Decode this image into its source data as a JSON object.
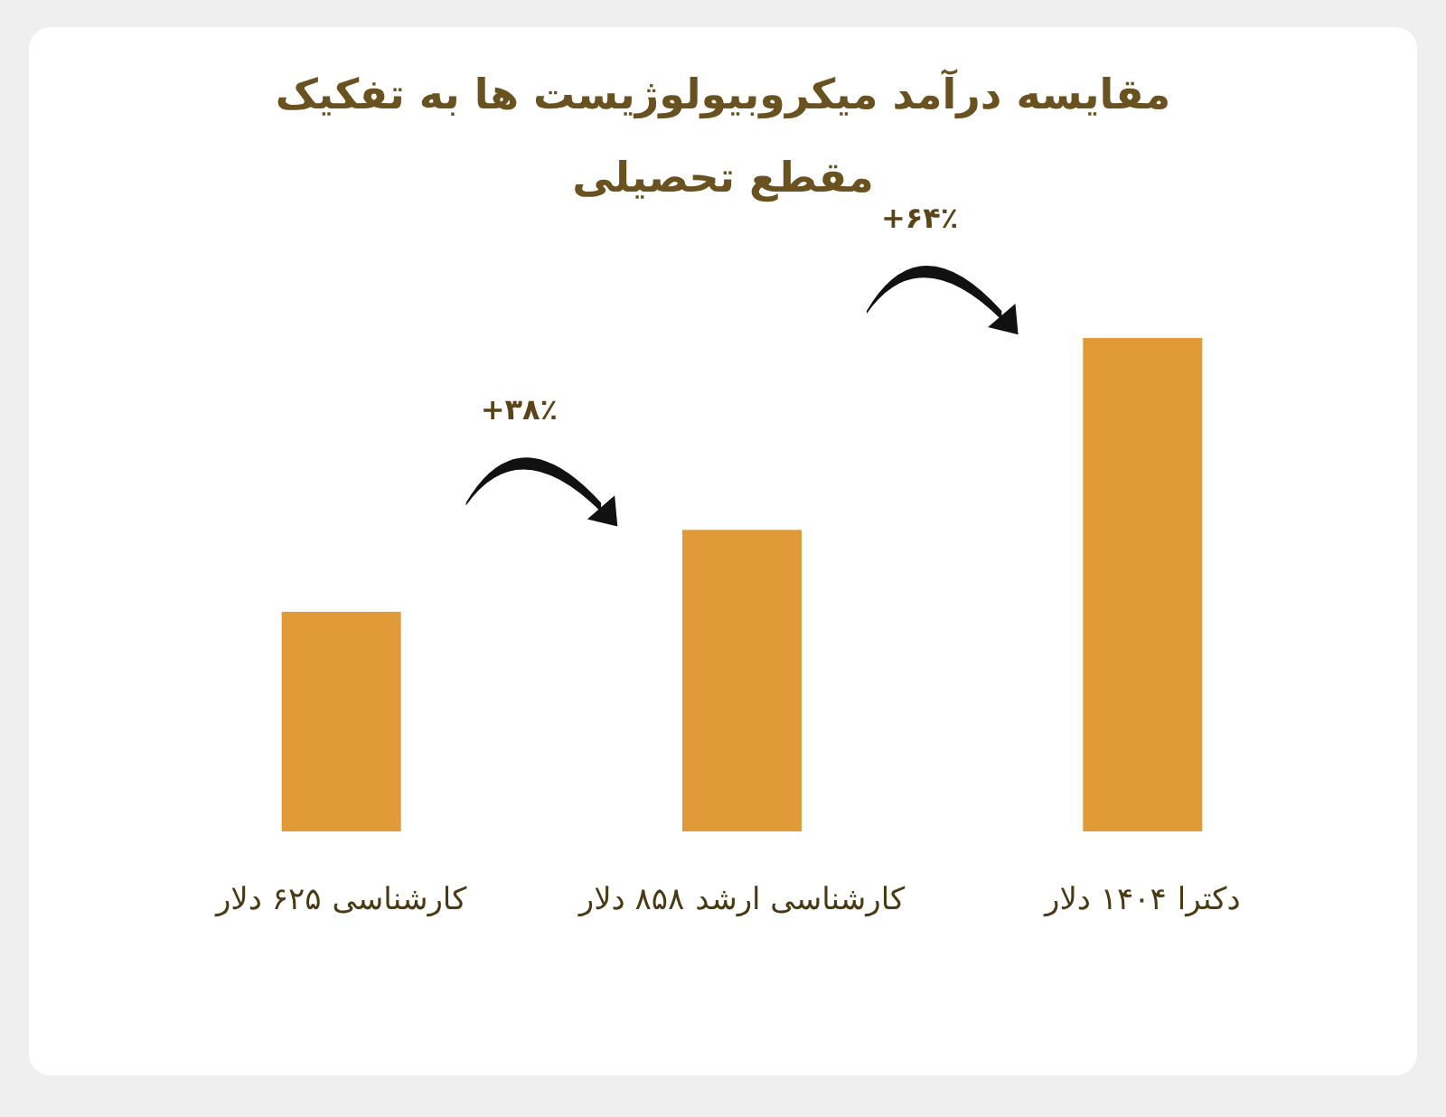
{
  "chart_data": {
    "type": "bar",
    "title": "مقایسه درآمد میکروبیولوژیست ها به تفکیک مقطع تحصیلی",
    "categories": [
      "کارشناسی",
      "کارشناسی ارشد",
      "دکترا"
    ],
    "values": [
      625,
      858,
      1404
    ],
    "value_labels": [
      "۶۲۵ دلار",
      "۸۵۸ دلار",
      "۱۴۰۴ دلار"
    ],
    "color": "#e09b38",
    "annotations": [
      "+۳۸٪",
      "+۶۴٪"
    ]
  }
}
